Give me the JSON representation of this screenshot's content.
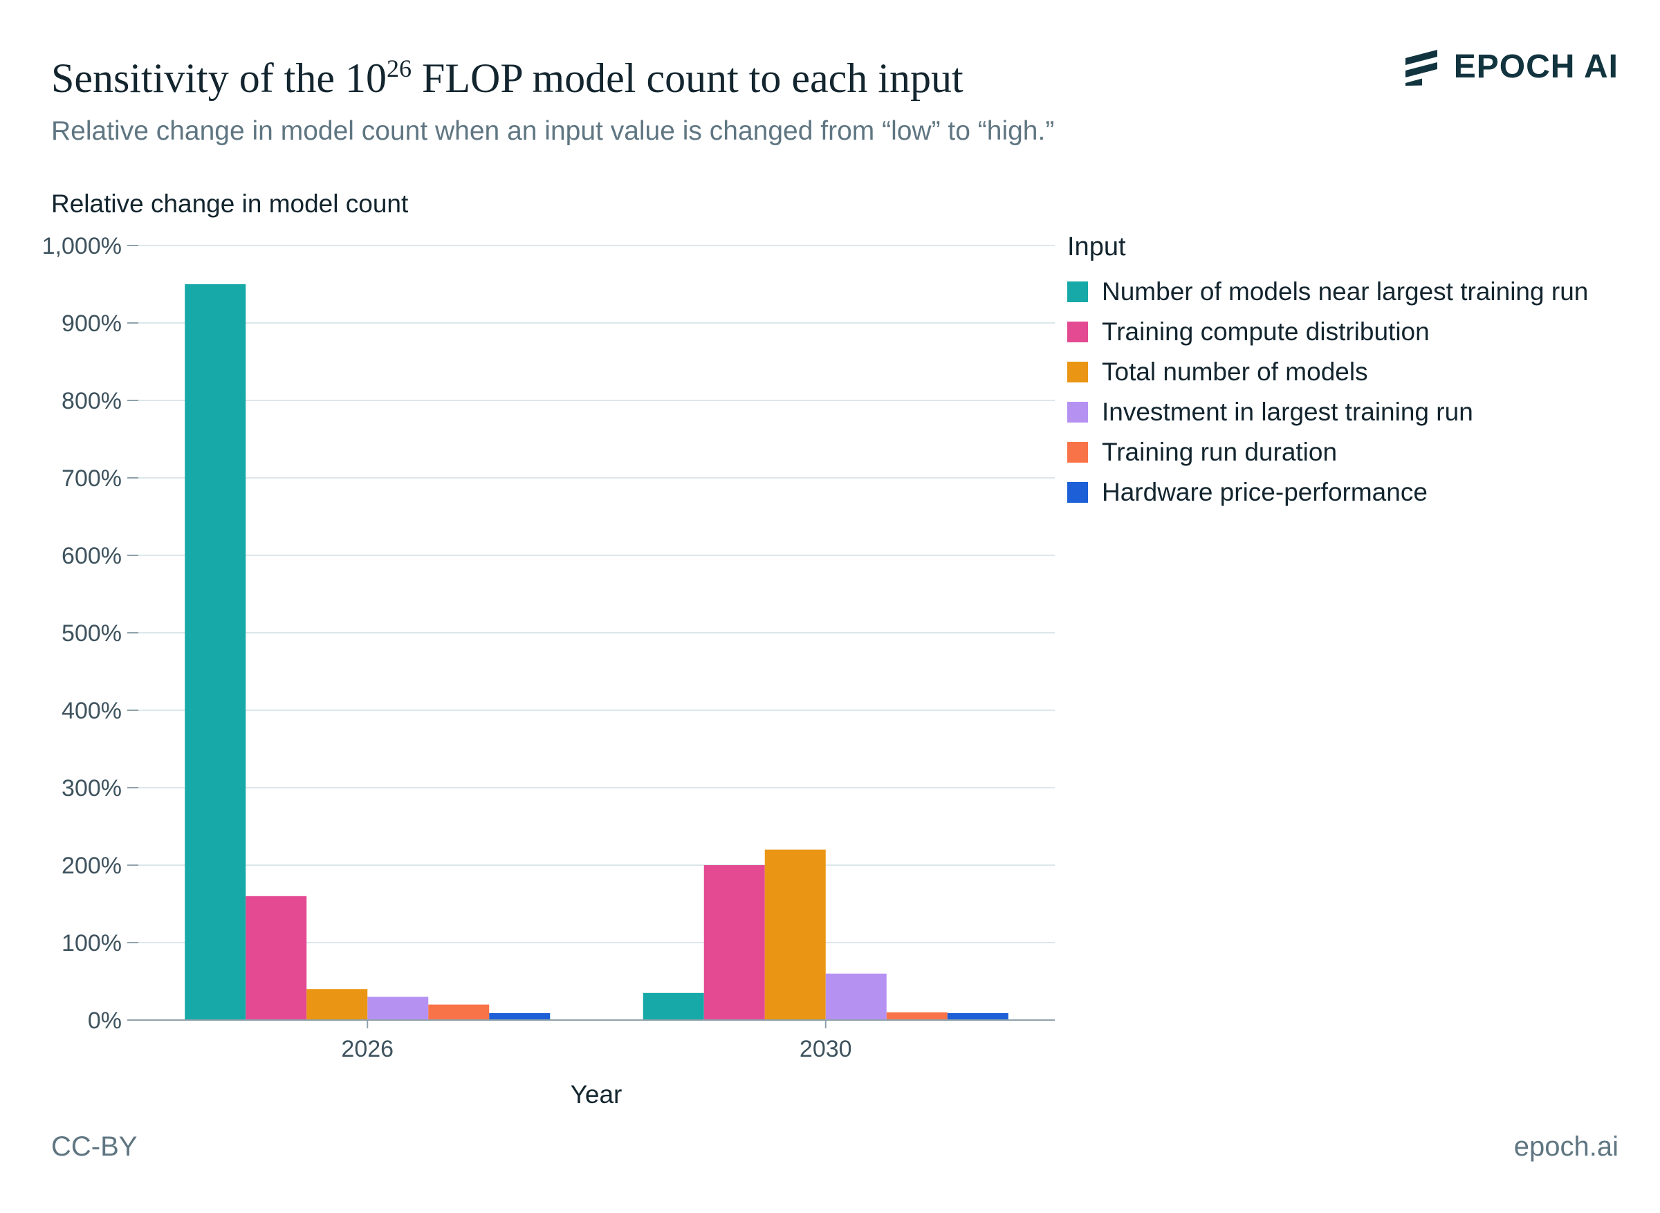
{
  "header": {
    "title_pre": "Sensitivity of the 10",
    "title_sup": "26",
    "title_post": " FLOP model count to each input",
    "subtitle": "Relative change in model count when an input value is changed from “low” to “high.”"
  },
  "logo": {
    "text": "EPOCH AI",
    "icon": "epoch-stripes-icon"
  },
  "footer": {
    "license": "CC-BY",
    "site": "epoch.ai"
  },
  "chart_data": {
    "type": "bar",
    "ylabel": "Relative change in model count",
    "xlabel": "Year",
    "categories": [
      "2026",
      "2030"
    ],
    "ylim": [
      0,
      1000
    ],
    "yticks": [
      0,
      100,
      200,
      300,
      400,
      500,
      600,
      700,
      800,
      900,
      1000
    ],
    "ytick_labels": [
      "0%",
      "100%",
      "200%",
      "300%",
      "400%",
      "500%",
      "600%",
      "700%",
      "800%",
      "900%",
      "1,000%"
    ],
    "grid": true,
    "legend_title": "Input",
    "legend_position": "right",
    "series": [
      {
        "name": "Number of models near largest training run",
        "color": "#16a9a7",
        "values": [
          950,
          35
        ]
      },
      {
        "name": "Training compute distribution",
        "color": "#e34a92",
        "values": [
          160,
          200
        ]
      },
      {
        "name": "Total number of models",
        "color": "#ea9614",
        "values": [
          40,
          220
        ]
      },
      {
        "name": "Investment in largest training run",
        "color": "#b592f2",
        "values": [
          30,
          60
        ]
      },
      {
        "name": "Training run duration",
        "color": "#f87448",
        "values": [
          20,
          10
        ]
      },
      {
        "name": "Hardware price-performance",
        "color": "#1c5fd6",
        "values": [
          9,
          9
        ]
      }
    ]
  }
}
